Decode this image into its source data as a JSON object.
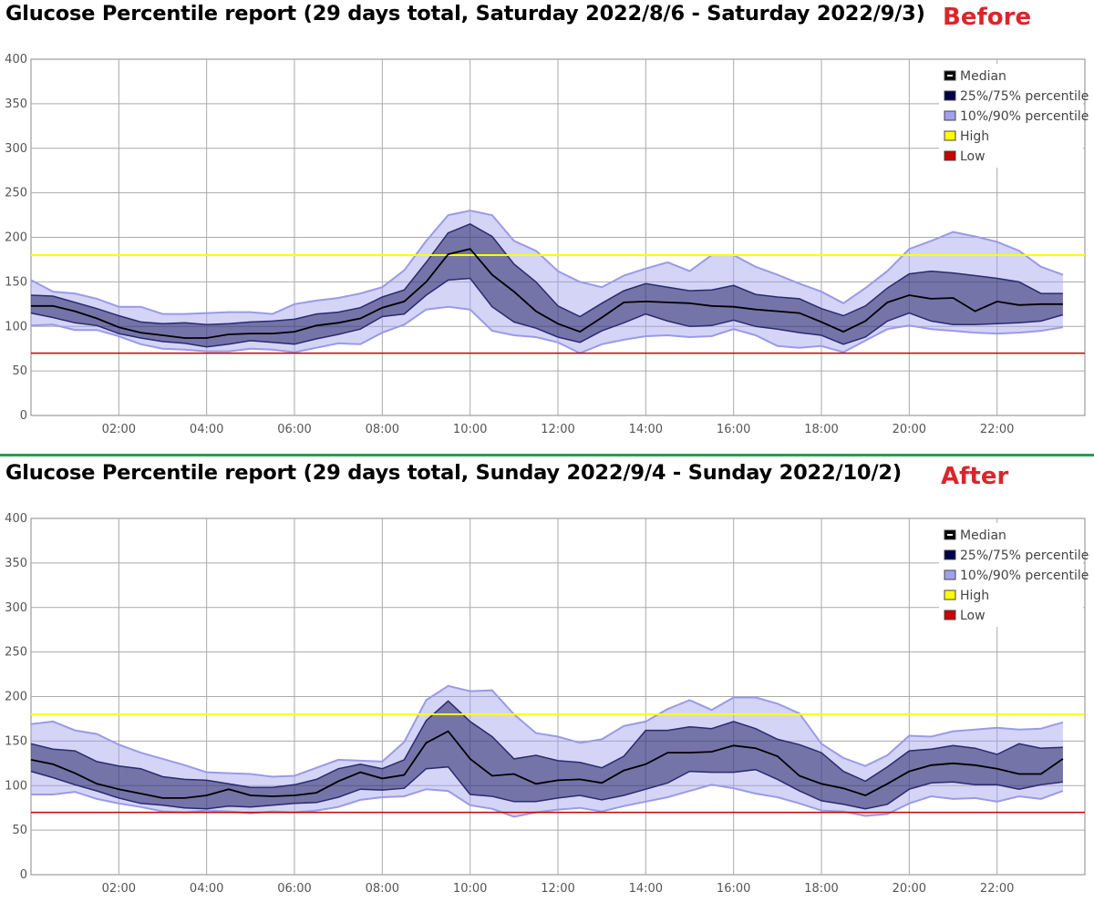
{
  "chart_data": [
    {
      "type": "area",
      "title": "Glucose Percentile report (29 days total, Saturday 2022/8/6 - Saturday 2022/9/3)",
      "tag": "Before",
      "ylim": [
        0,
        400
      ],
      "yticks": [
        0,
        50,
        100,
        150,
        200,
        250,
        300,
        350,
        400
      ],
      "xlim": [
        0,
        24
      ],
      "xticks": [
        "02:00",
        "04:00",
        "06:00",
        "08:00",
        "10:00",
        "12:00",
        "14:00",
        "16:00",
        "18:00",
        "20:00",
        "22:00"
      ],
      "grid": true,
      "legend_position": "top-right",
      "thresholds": {
        "high": 180,
        "low": 70
      },
      "colors": {
        "median": "#000000",
        "p25_75": "#000048",
        "p10_90": "#a0a0ee",
        "high": "#ffff00",
        "low": "#cc0000"
      },
      "legend": [
        "Median",
        "25%/75% percentile",
        "10%/90% percentile",
        "High",
        "Low"
      ],
      "x": [
        0,
        0.5,
        1,
        1.5,
        2,
        2.5,
        3,
        3.5,
        4,
        4.5,
        5,
        5.5,
        6,
        6.5,
        7,
        7.5,
        8,
        8.5,
        9,
        9.5,
        10,
        10.5,
        11,
        11.5,
        12,
        12.5,
        13,
        13.5,
        14,
        14.5,
        15,
        15.5,
        16,
        16.5,
        17,
        17.5,
        18,
        18.5,
        19,
        19.5,
        20,
        20.5,
        21,
        21.5,
        22,
        22.5,
        23,
        23.5
      ],
      "series": [
        {
          "name": "90%",
          "values": [
            152,
            139,
            137,
            131,
            122,
            122,
            114,
            114,
            115,
            116,
            116,
            114,
            125,
            129,
            132,
            137,
            144,
            163,
            196,
            225,
            230,
            225,
            196,
            185,
            162,
            150,
            144,
            157,
            165,
            172,
            162,
            180,
            180,
            167,
            158,
            148,
            139,
            126,
            143,
            162,
            187,
            196,
            206,
            201,
            195,
            185,
            167,
            158
          ]
        },
        {
          "name": "75%",
          "values": [
            135,
            134,
            127,
            120,
            112,
            105,
            103,
            104,
            102,
            103,
            105,
            106,
            108,
            114,
            116,
            121,
            133,
            141,
            172,
            205,
            215,
            201,
            170,
            150,
            123,
            111,
            126,
            140,
            148,
            144,
            140,
            141,
            146,
            136,
            133,
            131,
            120,
            112,
            123,
            143,
            159,
            162,
            160,
            157,
            154,
            150,
            137,
            137
          ]
        },
        {
          "name": "Median",
          "values": [
            123,
            123,
            117,
            109,
            99,
            93,
            90,
            87,
            87,
            91,
            92,
            92,
            94,
            101,
            104,
            109,
            121,
            128,
            150,
            181,
            187,
            158,
            139,
            117,
            103,
            94,
            110,
            127,
            128,
            127,
            126,
            123,
            122,
            119,
            117,
            115,
            105,
            94,
            106,
            127,
            135,
            131,
            132,
            117,
            128,
            124,
            125,
            125
          ]
        },
        {
          "name": "25%",
          "values": [
            115,
            110,
            104,
            101,
            92,
            87,
            83,
            81,
            77,
            80,
            84,
            82,
            80,
            86,
            91,
            97,
            111,
            114,
            135,
            152,
            154,
            122,
            105,
            98,
            88,
            82,
            95,
            104,
            114,
            106,
            100,
            101,
            107,
            100,
            97,
            93,
            90,
            80,
            88,
            106,
            115,
            106,
            102,
            102,
            103,
            104,
            106,
            113
          ]
        },
        {
          "name": "10%",
          "values": [
            101,
            102,
            96,
            96,
            89,
            80,
            75,
            74,
            72,
            72,
            75,
            74,
            71,
            76,
            81,
            80,
            93,
            102,
            119,
            122,
            119,
            95,
            90,
            88,
            82,
            70,
            80,
            85,
            89,
            90,
            88,
            89,
            97,
            90,
            78,
            76,
            78,
            71,
            84,
            97,
            101,
            97,
            95,
            93,
            92,
            93,
            95,
            99
          ]
        }
      ]
    },
    {
      "type": "area",
      "title": "Glucose Percentile report (29 days total, Sunday 2022/9/4 - Sunday 2022/10/2)",
      "tag": "After",
      "ylim": [
        0,
        400
      ],
      "yticks": [
        0,
        50,
        100,
        150,
        200,
        250,
        300,
        350,
        400
      ],
      "xlim": [
        0,
        24
      ],
      "xticks": [
        "02:00",
        "04:00",
        "06:00",
        "08:00",
        "10:00",
        "12:00",
        "14:00",
        "16:00",
        "18:00",
        "20:00",
        "22:00"
      ],
      "grid": true,
      "legend_position": "top-right",
      "thresholds": {
        "high": 180,
        "low": 70
      },
      "colors": {
        "median": "#000000",
        "p25_75": "#000048",
        "p10_90": "#a0a0ee",
        "high": "#ffff00",
        "low": "#cc0000"
      },
      "legend": [
        "Median",
        "25%/75% percentile",
        "10%/90% percentile",
        "High",
        "Low"
      ],
      "x": [
        0,
        0.5,
        1,
        1.5,
        2,
        2.5,
        3,
        3.5,
        4,
        4.5,
        5,
        5.5,
        6,
        6.5,
        7,
        7.5,
        8,
        8.5,
        9,
        9.5,
        10,
        10.5,
        11,
        11.5,
        12,
        12.5,
        13,
        13.5,
        14,
        14.5,
        15,
        15.5,
        16,
        16.5,
        17,
        17.5,
        18,
        18.5,
        19,
        19.5,
        20,
        20.5,
        21,
        21.5,
        22,
        22.5,
        23,
        23.5
      ],
      "series": [
        {
          "name": "90%",
          "values": [
            169,
            172,
            162,
            158,
            146,
            137,
            130,
            123,
            115,
            114,
            113,
            110,
            111,
            120,
            129,
            128,
            127,
            149,
            196,
            212,
            206,
            207,
            180,
            159,
            155,
            148,
            152,
            167,
            172,
            186,
            196,
            185,
            199,
            199,
            192,
            181,
            147,
            131,
            122,
            134,
            156,
            155,
            161,
            163,
            165,
            163,
            164,
            171
          ]
        },
        {
          "name": "75%",
          "values": [
            147,
            141,
            139,
            127,
            122,
            119,
            110,
            107,
            106,
            102,
            98,
            98,
            101,
            107,
            119,
            124,
            119,
            129,
            173,
            195,
            172,
            155,
            130,
            134,
            128,
            126,
            120,
            133,
            162,
            162,
            166,
            164,
            172,
            164,
            152,
            146,
            137,
            116,
            105,
            121,
            139,
            141,
            145,
            142,
            135,
            147,
            142,
            143
          ]
        },
        {
          "name": "Median",
          "values": [
            129,
            124,
            114,
            102,
            96,
            91,
            86,
            86,
            89,
            96,
            89,
            88,
            89,
            92,
            105,
            115,
            108,
            112,
            148,
            161,
            130,
            111,
            113,
            102,
            106,
            107,
            103,
            117,
            124,
            137,
            137,
            138,
            145,
            142,
            133,
            111,
            102,
            97,
            89,
            102,
            116,
            123,
            125,
            123,
            119,
            113,
            113,
            130
          ]
        },
        {
          "name": "25%",
          "values": [
            116,
            109,
            101,
            94,
            86,
            80,
            78,
            75,
            74,
            77,
            76,
            78,
            80,
            81,
            87,
            96,
            95,
            97,
            119,
            121,
            90,
            88,
            82,
            82,
            86,
            89,
            84,
            89,
            96,
            103,
            116,
            115,
            115,
            118,
            107,
            94,
            83,
            79,
            74,
            79,
            96,
            103,
            104,
            101,
            101,
            96,
            101,
            104
          ]
        },
        {
          "name": "10%",
          "values": [
            90,
            90,
            93,
            85,
            80,
            76,
            71,
            70,
            72,
            71,
            69,
            71,
            70,
            72,
            76,
            84,
            87,
            88,
            96,
            94,
            78,
            74,
            65,
            70,
            73,
            75,
            71,
            77,
            82,
            87,
            94,
            101,
            97,
            91,
            87,
            80,
            72,
            71,
            66,
            68,
            80,
            88,
            85,
            86,
            82,
            88,
            85,
            94
          ]
        }
      ]
    }
  ]
}
